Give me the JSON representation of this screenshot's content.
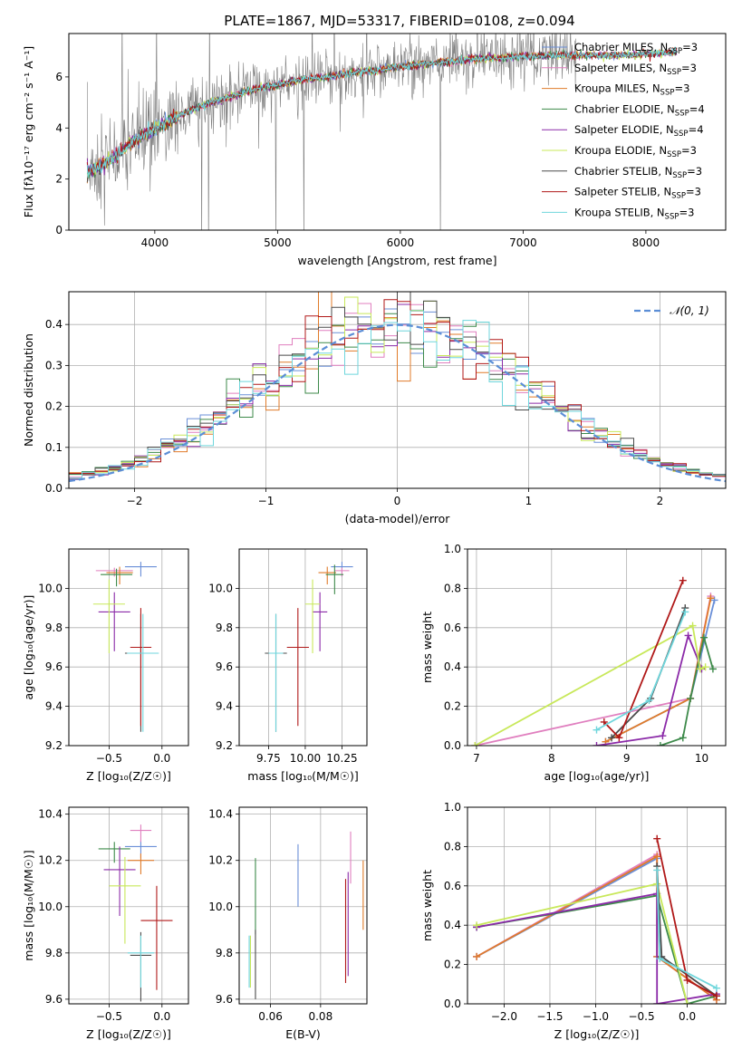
{
  "figure": {
    "suptitle": "PLATE=1867, MJD=53317, FIBERID=0108, z=0.094"
  },
  "colors": {
    "Chabrier MILES": "#6a8fd8",
    "Salpeter MILES": "#e07fbf",
    "Kroupa MILES": "#e07b2a",
    "Chabrier ELODIE": "#3d8a4a",
    "Salpeter ELODIE": "#8b2aa8",
    "Kroupa ELODIE": "#c8e85a",
    "Chabrier STELIB": "#4a4a4a",
    "Salpeter STELIB": "#b01818",
    "Kroupa STELIB": "#6fd6dc",
    "data": "#808080",
    "normal": "#5b8ed6"
  },
  "chart_data": [
    {
      "type": "line",
      "id": "spectrum",
      "xlabel": "wavelength [Angstrom, rest frame]",
      "ylabel": "Flux [fλ10⁻¹⁷ erg cm⁻² s⁻¹ A⁻¹]",
      "xlim": [
        3300,
        8650
      ],
      "ylim": [
        0,
        7.7
      ],
      "xticks": [
        "4000",
        "5000",
        "6000",
        "7000",
        "8000"
      ],
      "xtick_values": [
        4000,
        5000,
        6000,
        7000,
        8000
      ],
      "yticks": [
        "0",
        "2",
        "4",
        "6"
      ],
      "ytick_values": [
        0,
        2,
        4,
        6
      ],
      "grid": false,
      "legend_position": "right",
      "legend": [
        {
          "model": "Chabrier MILES",
          "label": "Chabrier MILES, N",
          "sub": "SSP",
          "suffix": "=3"
        },
        {
          "model": "Salpeter MILES",
          "label": "Salpeter MILES, N",
          "sub": "SSP",
          "suffix": "=3"
        },
        {
          "model": "Kroupa MILES",
          "label": "Kroupa MILES, N",
          "sub": "SSP",
          "suffix": "=3"
        },
        {
          "model": "Chabrier ELODIE",
          "label": "Chabrier ELODIE, N",
          "sub": "SSP",
          "suffix": "=4"
        },
        {
          "model": "Salpeter ELODIE",
          "label": "Salpeter ELODIE, N",
          "sub": "SSP",
          "suffix": "=4"
        },
        {
          "model": "Kroupa ELODIE",
          "label": "Kroupa ELODIE, N",
          "sub": "SSP",
          "suffix": "=3"
        },
        {
          "model": "Chabrier STELIB",
          "label": "Chabrier STELIB, N",
          "sub": "SSP",
          "suffix": "=3"
        },
        {
          "model": "Salpeter STELIB",
          "label": "Salpeter STELIB, N",
          "sub": "SSP",
          "suffix": "=3"
        },
        {
          "model": "Kroupa STELIB",
          "label": "Kroupa STELIB, N",
          "sub": "SSP",
          "suffix": "=3"
        }
      ],
      "continuum": {
        "x": [
          3450,
          3600,
          3700,
          3800,
          3900,
          4000,
          4100,
          4200,
          4400,
          4600,
          4800,
          5000,
          5200,
          5400,
          5600,
          5800,
          6000,
          6200,
          6400,
          6600,
          6800,
          7000,
          7200,
          7400,
          7600,
          7800,
          8000,
          8200,
          8400
        ],
        "y": [
          2.3,
          2.6,
          3.0,
          3.4,
          3.7,
          3.95,
          4.2,
          4.5,
          4.9,
          5.2,
          5.5,
          5.7,
          5.9,
          6.0,
          6.15,
          6.25,
          6.4,
          6.5,
          6.6,
          6.7,
          6.75,
          6.8,
          6.85,
          6.85,
          6.85,
          6.85,
          6.9,
          6.95,
          7.0
        ]
      },
      "model_end": 8250,
      "data_end": 7430
    },
    {
      "type": "bar",
      "id": "residuals",
      "xlabel": "(data-model)/error",
      "ylabel": "Normed distribution",
      "xlim": [
        -2.5,
        2.5
      ],
      "ylim": [
        0,
        0.48
      ],
      "xticks": [
        "−2",
        "−1",
        "0",
        "1",
        "2"
      ],
      "xtick_values": [
        -2,
        -1,
        0,
        1,
        2
      ],
      "yticks": [
        "0.0",
        "0.1",
        "0.2",
        "0.3",
        "0.4"
      ],
      "ytick_values": [
        0,
        0.1,
        0.2,
        0.3,
        0.4
      ],
      "grid": true,
      "legend_position": "top-right",
      "legend": [
        {
          "label": "𝒩(0, 1)"
        }
      ],
      "bin_width": 0.1
    },
    {
      "type": "scatter",
      "id": "age-vs-Z",
      "xlabel": "Z [log₁₀(Z/Z☉)]",
      "ylabel": "age  [log₁₀(age/yr)]",
      "xlim": [
        -0.88,
        0.25
      ],
      "ylim": [
        9.2,
        10.2
      ],
      "xticks": [
        "−0.5",
        "0.0"
      ],
      "xtick_values": [
        -0.5,
        0.0
      ],
      "yticks": [
        "9.2",
        "9.4",
        "9.6",
        "9.8",
        "10.0"
      ],
      "ytick_values": [
        9.2,
        9.4,
        9.6,
        9.8,
        10.0
      ],
      "grid": true
    },
    {
      "type": "scatter",
      "id": "age-vs-mass",
      "xlabel": "mass [log₁₀(M/M☉)]",
      "ylabel": "",
      "xlim": [
        9.55,
        10.42
      ],
      "ylim": [
        9.2,
        10.2
      ],
      "xticks": [
        "9.75",
        "10.00",
        "10.25"
      ],
      "xtick_values": [
        9.75,
        10.0,
        10.25
      ],
      "yticks": [
        "9.2",
        "9.4",
        "9.6",
        "9.8",
        "10.0"
      ],
      "ytick_values": [
        9.2,
        9.4,
        9.6,
        9.8,
        10.0
      ],
      "grid": true
    },
    {
      "type": "line",
      "id": "weight-vs-age",
      "xlabel": "age  [log₁₀(age/yr)]",
      "ylabel": "mass weight",
      "xlim": [
        6.88,
        10.32
      ],
      "ylim": [
        0,
        1
      ],
      "xticks": [
        "7",
        "8",
        "9",
        "10"
      ],
      "xtick_values": [
        7,
        8,
        9,
        10
      ],
      "yticks": [
        "0.0",
        "0.2",
        "0.4",
        "0.6",
        "0.8",
        "1.0"
      ],
      "ytick_values": [
        0,
        0.2,
        0.4,
        0.6,
        0.8,
        1.0
      ],
      "grid": true,
      "series": [
        {
          "model": "Chabrier MILES",
          "x": [
            8.72,
            9.85,
            10.17
          ],
          "y": [
            0.02,
            0.24,
            0.74
          ]
        },
        {
          "model": "Salpeter MILES",
          "x": [
            6.98,
            9.85,
            10.12
          ],
          "y": [
            0.0,
            0.24,
            0.76
          ]
        },
        {
          "model": "Kroupa MILES",
          "x": [
            8.72,
            9.85,
            10.12
          ],
          "y": [
            0.02,
            0.24,
            0.75
          ]
        },
        {
          "model": "Chabrier ELODIE",
          "x": [
            9.45,
            9.75,
            9.85,
            10.03,
            10.15
          ],
          "y": [
            0.0,
            0.04,
            0.24,
            0.55,
            0.39
          ]
        },
        {
          "model": "Salpeter ELODIE",
          "x": [
            8.6,
            9.48,
            9.82,
            10.0
          ],
          "y": [
            0.0,
            0.05,
            0.56,
            0.39
          ]
        },
        {
          "model": "Kroupa ELODIE",
          "x": [
            6.98,
            9.88,
            9.98,
            10.05
          ],
          "y": [
            0.0,
            0.61,
            0.39,
            0.4
          ]
        },
        {
          "model": "Chabrier STELIB",
          "x": [
            8.8,
            9.32,
            9.78
          ],
          "y": [
            0.04,
            0.24,
            0.7
          ]
        },
        {
          "model": "Salpeter STELIB",
          "x": [
            8.7,
            8.9,
            9.75
          ],
          "y": [
            0.12,
            0.04,
            0.84
          ]
        },
        {
          "model": "Kroupa STELIB",
          "x": [
            8.6,
            9.3,
            9.78
          ],
          "y": [
            0.08,
            0.23,
            0.68
          ]
        }
      ]
    },
    {
      "type": "scatter",
      "id": "mass-vs-Z",
      "xlabel": "Z [log₁₀(Z/Z☉)]",
      "ylabel": "mass [log₁₀(M/M☉)]",
      "xlim": [
        -0.88,
        0.25
      ],
      "ylim": [
        9.58,
        10.43
      ],
      "xticks": [
        "−0.5",
        "0.0"
      ],
      "xtick_values": [
        -0.5,
        0.0
      ],
      "yticks": [
        "9.6",
        "9.8",
        "10.0",
        "10.2",
        "10.4"
      ],
      "ytick_values": [
        9.6,
        9.8,
        10.0,
        10.2,
        10.4
      ],
      "grid": true
    },
    {
      "type": "scatter",
      "id": "mass-vs-ebv",
      "xlabel": "E(B-V)",
      "ylabel": "",
      "xlim": [
        0.0475,
        0.0985
      ],
      "ylim": [
        9.58,
        10.43
      ],
      "xticks": [
        "0.06",
        "0.08"
      ],
      "xtick_values": [
        0.06,
        0.08
      ],
      "yticks": [
        "9.6",
        "9.8",
        "10.0",
        "10.2",
        "10.4"
      ],
      "ytick_values": [
        9.6,
        9.8,
        10.0,
        10.2,
        10.4
      ],
      "grid": true
    },
    {
      "type": "line",
      "id": "weight-vs-Z",
      "xlabel": "Z [log₁₀(Z/Z☉)]",
      "ylabel": "mass weight",
      "xlim": [
        -2.4,
        0.42
      ],
      "ylim": [
        0,
        1
      ],
      "xticks": [
        "−2.0",
        "−1.5",
        "−1.0",
        "−0.5",
        "0.0"
      ],
      "xtick_values": [
        -2.0,
        -1.5,
        -1.0,
        -0.5,
        0.0
      ],
      "yticks": [
        "0.0",
        "0.2",
        "0.4",
        "0.6",
        "0.8",
        "1.0"
      ],
      "ytick_values": [
        0,
        0.2,
        0.4,
        0.6,
        0.8,
        1.0
      ],
      "grid": true,
      "series": [
        {
          "model": "Chabrier MILES",
          "x": [
            -2.3,
            -0.33,
            -0.33,
            0.32
          ],
          "y": [
            0.24,
            0.74,
            0.24,
            0.02
          ]
        },
        {
          "model": "Salpeter MILES",
          "x": [
            -2.3,
            -0.33,
            -0.33,
            0.32
          ],
          "y": [
            0.24,
            0.76,
            0.24,
            0.02
          ]
        },
        {
          "model": "Kroupa MILES",
          "x": [
            -2.3,
            -0.33,
            -0.33,
            0.32
          ],
          "y": [
            0.24,
            0.75,
            0.24,
            0.02
          ]
        },
        {
          "model": "Chabrier ELODIE",
          "x": [
            -2.3,
            -0.33,
            0.0,
            0.32
          ],
          "y": [
            0.39,
            0.55,
            0.0,
            0.04
          ]
        },
        {
          "model": "Salpeter ELODIE",
          "x": [
            -2.3,
            -0.33,
            -0.33,
            0.32
          ],
          "y": [
            0.39,
            0.56,
            0.0,
            0.05
          ]
        },
        {
          "model": "Kroupa ELODIE",
          "x": [
            -2.3,
            -0.33,
            0.0
          ],
          "y": [
            0.4,
            0.61,
            0.0
          ]
        },
        {
          "model": "Chabrier STELIB",
          "x": [
            -0.33,
            -0.28,
            0.32
          ],
          "y": [
            0.7,
            0.24,
            0.04
          ]
        },
        {
          "model": "Salpeter STELIB",
          "x": [
            -0.33,
            0.0,
            0.32
          ],
          "y": [
            0.84,
            0.12,
            0.04
          ]
        },
        {
          "model": "Kroupa STELIB",
          "x": [
            -0.33,
            -0.3,
            0.32
          ],
          "y": [
            0.68,
            0.23,
            0.08
          ]
        }
      ]
    }
  ]
}
